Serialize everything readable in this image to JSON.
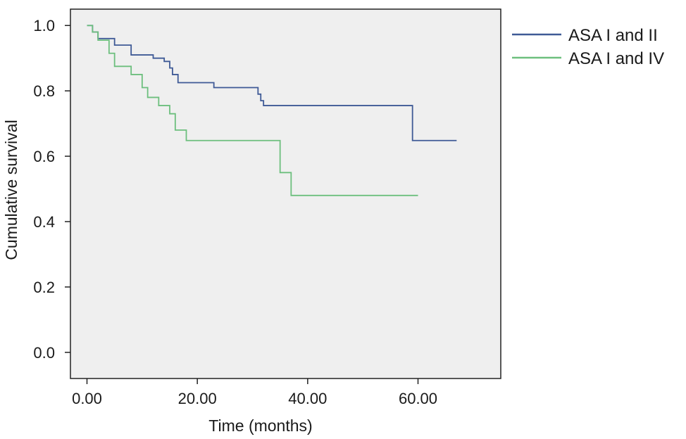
{
  "chart_data": {
    "type": "line",
    "title": "",
    "xlabel": "Time (months)",
    "ylabel": "Cumulative survival",
    "xlim": [
      -3,
      75
    ],
    "ylim": [
      -0.08,
      1.05
    ],
    "xticks": [
      0,
      20,
      40,
      60
    ],
    "xtick_labels": [
      "0.00",
      "20.00",
      "40.00",
      "60.00"
    ],
    "yticks": [
      0.0,
      0.2,
      0.4,
      0.6,
      0.8,
      1.0
    ],
    "ytick_labels": [
      "0.0",
      "0.2",
      "0.4",
      "0.6",
      "0.8",
      "1.0"
    ],
    "grid": false,
    "legend_position": "right-top",
    "plot_background": "#efefef",
    "step": true,
    "series": [
      {
        "name": "ASA I and II",
        "color": "#3f5a96",
        "points": [
          [
            0,
            1.0
          ],
          [
            1.0,
            0.98
          ],
          [
            2.0,
            0.96
          ],
          [
            5.0,
            0.94
          ],
          [
            8.0,
            0.91
          ],
          [
            12.0,
            0.9
          ],
          [
            14.0,
            0.89
          ],
          [
            15.0,
            0.87
          ],
          [
            15.5,
            0.85
          ],
          [
            16.5,
            0.825
          ],
          [
            23.0,
            0.81
          ],
          [
            31.0,
            0.79
          ],
          [
            31.5,
            0.77
          ],
          [
            32.0,
            0.755
          ],
          [
            59.0,
            0.648
          ],
          [
            67.0,
            0.648
          ]
        ]
      },
      {
        "name": "ASA I and IV",
        "color": "#6dbf7e",
        "points": [
          [
            0,
            1.0
          ],
          [
            1.0,
            0.98
          ],
          [
            2.0,
            0.955
          ],
          [
            4.0,
            0.915
          ],
          [
            5.0,
            0.875
          ],
          [
            8.0,
            0.85
          ],
          [
            10.0,
            0.81
          ],
          [
            11.0,
            0.78
          ],
          [
            13.0,
            0.755
          ],
          [
            15.0,
            0.73
          ],
          [
            16.0,
            0.68
          ],
          [
            18.0,
            0.648
          ],
          [
            35.0,
            0.55
          ],
          [
            37.0,
            0.48
          ],
          [
            60.0,
            0.48
          ]
        ]
      }
    ]
  }
}
